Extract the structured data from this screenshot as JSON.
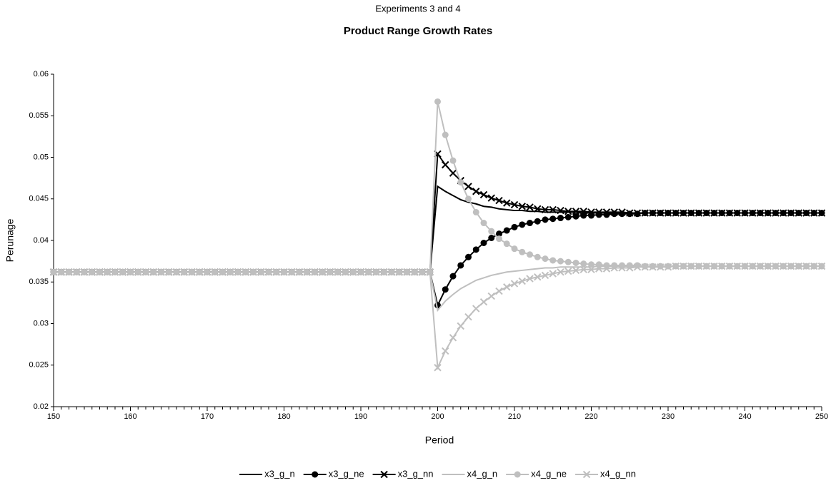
{
  "chart_data": {
    "type": "line",
    "title": "Experiments 3 and 4",
    "subtitle": "Product Range Growth Rates",
    "x_label": "Period",
    "y_label": "Perunage",
    "xlim": [
      150,
      250
    ],
    "xticks": [
      150,
      160,
      170,
      180,
      190,
      200,
      210,
      220,
      230,
      240,
      250
    ],
    "ylim": [
      0.02,
      0.06
    ],
    "yticks": [
      0.02,
      0.025,
      0.03,
      0.035,
      0.04,
      0.045,
      0.05,
      0.055,
      0.06
    ],
    "legend": "bottom",
    "x": [
      150,
      151,
      152,
      153,
      154,
      155,
      156,
      157,
      158,
      159,
      160,
      161,
      162,
      163,
      164,
      165,
      166,
      167,
      168,
      169,
      170,
      171,
      172,
      173,
      174,
      175,
      176,
      177,
      178,
      179,
      180,
      181,
      182,
      183,
      184,
      185,
      186,
      187,
      188,
      189,
      190,
      191,
      192,
      193,
      194,
      195,
      196,
      197,
      198,
      199,
      200,
      201,
      202,
      203,
      204,
      205,
      206,
      207,
      208,
      209,
      210,
      211,
      212,
      213,
      214,
      215,
      216,
      217,
      218,
      219,
      220,
      221,
      222,
      223,
      224,
      225,
      226,
      227,
      228,
      229,
      230,
      231,
      232,
      233,
      234,
      235,
      236,
      237,
      238,
      239,
      240,
      241,
      242,
      243,
      244,
      245,
      246,
      247,
      248,
      249,
      250
    ],
    "series": [
      {
        "name": "x3_g_n",
        "color": "#000000",
        "marker": "none",
        "values": [
          0.0362,
          0.0362,
          0.0362,
          0.0362,
          0.0362,
          0.0362,
          0.0362,
          0.0362,
          0.0362,
          0.0362,
          0.0362,
          0.0362,
          0.0362,
          0.0362,
          0.0362,
          0.0362,
          0.0362,
          0.0362,
          0.0362,
          0.0362,
          0.0362,
          0.0362,
          0.0362,
          0.0362,
          0.0362,
          0.0362,
          0.0362,
          0.0362,
          0.0362,
          0.0362,
          0.0362,
          0.0362,
          0.0362,
          0.0362,
          0.0362,
          0.0362,
          0.0362,
          0.0362,
          0.0362,
          0.0362,
          0.0362,
          0.0362,
          0.0362,
          0.0362,
          0.0362,
          0.0362,
          0.0362,
          0.0362,
          0.0362,
          0.0362,
          0.0465,
          0.0459,
          0.0454,
          0.0449,
          0.0446,
          0.0444,
          0.0441,
          0.044,
          0.0438,
          0.0437,
          0.0436,
          0.0436,
          0.0435,
          0.0435,
          0.0434,
          0.0434,
          0.0434,
          0.0434,
          0.0434,
          0.0433,
          0.0433,
          0.0433,
          0.0433,
          0.0433,
          0.0433,
          0.0433,
          0.0433,
          0.0433,
          0.0433,
          0.0433,
          0.0433,
          0.0433,
          0.0433,
          0.0433,
          0.0433,
          0.0433,
          0.0433,
          0.0433,
          0.0433,
          0.0433,
          0.0433,
          0.0433,
          0.0433,
          0.0433,
          0.0433,
          0.0433,
          0.0433,
          0.0433,
          0.0433,
          0.0433,
          0.0433
        ]
      },
      {
        "name": "x3_g_ne",
        "color": "#000000",
        "marker": "circle",
        "values": [
          0.0362,
          0.0362,
          0.0362,
          0.0362,
          0.0362,
          0.0362,
          0.0362,
          0.0362,
          0.0362,
          0.0362,
          0.0362,
          0.0362,
          0.0362,
          0.0362,
          0.0362,
          0.0362,
          0.0362,
          0.0362,
          0.0362,
          0.0362,
          0.0362,
          0.0362,
          0.0362,
          0.0362,
          0.0362,
          0.0362,
          0.0362,
          0.0362,
          0.0362,
          0.0362,
          0.0362,
          0.0362,
          0.0362,
          0.0362,
          0.0362,
          0.0362,
          0.0362,
          0.0362,
          0.0362,
          0.0362,
          0.0362,
          0.0362,
          0.0362,
          0.0362,
          0.0362,
          0.0362,
          0.0362,
          0.0362,
          0.0362,
          0.0362,
          0.0322,
          0.0341,
          0.0357,
          0.037,
          0.038,
          0.0389,
          0.0397,
          0.0403,
          0.0408,
          0.0412,
          0.0416,
          0.0419,
          0.0421,
          0.0423,
          0.0425,
          0.0426,
          0.0427,
          0.0428,
          0.0429,
          0.043,
          0.043,
          0.0431,
          0.0431,
          0.0432,
          0.0432,
          0.0432,
          0.0432,
          0.0433,
          0.0433,
          0.0433,
          0.0433,
          0.0433,
          0.0433,
          0.0433,
          0.0433,
          0.0433,
          0.0433,
          0.0433,
          0.0433,
          0.0433,
          0.0433,
          0.0433,
          0.0433,
          0.0433,
          0.0433,
          0.0433,
          0.0433,
          0.0433,
          0.0433,
          0.0433,
          0.0433
        ]
      },
      {
        "name": "x3_g_nn",
        "color": "#000000",
        "marker": "cross",
        "values": [
          0.0362,
          0.0362,
          0.0362,
          0.0362,
          0.0362,
          0.0362,
          0.0362,
          0.0362,
          0.0362,
          0.0362,
          0.0362,
          0.0362,
          0.0362,
          0.0362,
          0.0362,
          0.0362,
          0.0362,
          0.0362,
          0.0362,
          0.0362,
          0.0362,
          0.0362,
          0.0362,
          0.0362,
          0.0362,
          0.0362,
          0.0362,
          0.0362,
          0.0362,
          0.0362,
          0.0362,
          0.0362,
          0.0362,
          0.0362,
          0.0362,
          0.0362,
          0.0362,
          0.0362,
          0.0362,
          0.0362,
          0.0362,
          0.0362,
          0.0362,
          0.0362,
          0.0362,
          0.0362,
          0.0362,
          0.0362,
          0.0362,
          0.0362,
          0.0504,
          0.0491,
          0.0481,
          0.0472,
          0.0465,
          0.0459,
          0.0455,
          0.0451,
          0.0448,
          0.0445,
          0.0443,
          0.0441,
          0.044,
          0.0438,
          0.0437,
          0.0437,
          0.0436,
          0.0435,
          0.0435,
          0.0435,
          0.0434,
          0.0434,
          0.0434,
          0.0434,
          0.0434,
          0.0433,
          0.0433,
          0.0433,
          0.0433,
          0.0433,
          0.0433,
          0.0433,
          0.0433,
          0.0433,
          0.0433,
          0.0433,
          0.0433,
          0.0433,
          0.0433,
          0.0433,
          0.0433,
          0.0433,
          0.0433,
          0.0433,
          0.0433,
          0.0433,
          0.0433,
          0.0433,
          0.0433,
          0.0433,
          0.0433
        ]
      },
      {
        "name": "x4_g_n",
        "color": "#bfbfbf",
        "marker": "none",
        "values": [
          0.0362,
          0.0362,
          0.0362,
          0.0362,
          0.0362,
          0.0362,
          0.0362,
          0.0362,
          0.0362,
          0.0362,
          0.0362,
          0.0362,
          0.0362,
          0.0362,
          0.0362,
          0.0362,
          0.0362,
          0.0362,
          0.0362,
          0.0362,
          0.0362,
          0.0362,
          0.0362,
          0.0362,
          0.0362,
          0.0362,
          0.0362,
          0.0362,
          0.0362,
          0.0362,
          0.0362,
          0.0362,
          0.0362,
          0.0362,
          0.0362,
          0.0362,
          0.0362,
          0.0362,
          0.0362,
          0.0362,
          0.0362,
          0.0362,
          0.0362,
          0.0362,
          0.0362,
          0.0362,
          0.0362,
          0.0362,
          0.0362,
          0.0362,
          0.0316,
          0.0327,
          0.0335,
          0.0342,
          0.0347,
          0.0352,
          0.0355,
          0.0358,
          0.036,
          0.0362,
          0.0363,
          0.0364,
          0.0365,
          0.0366,
          0.0367,
          0.0367,
          0.0368,
          0.0368,
          0.0368,
          0.0368,
          0.0368,
          0.0369,
          0.0369,
          0.0369,
          0.0369,
          0.0369,
          0.0369,
          0.0369,
          0.0369,
          0.0369,
          0.0369,
          0.0369,
          0.0369,
          0.0369,
          0.0369,
          0.0369,
          0.0369,
          0.0369,
          0.0369,
          0.0369,
          0.0369,
          0.0369,
          0.0369,
          0.0369,
          0.0369,
          0.0369,
          0.0369,
          0.0369,
          0.0369,
          0.0369,
          0.0369
        ]
      },
      {
        "name": "x4_g_ne",
        "color": "#bfbfbf",
        "marker": "circle",
        "values": [
          0.0362,
          0.0362,
          0.0362,
          0.0362,
          0.0362,
          0.0362,
          0.0362,
          0.0362,
          0.0362,
          0.0362,
          0.0362,
          0.0362,
          0.0362,
          0.0362,
          0.0362,
          0.0362,
          0.0362,
          0.0362,
          0.0362,
          0.0362,
          0.0362,
          0.0362,
          0.0362,
          0.0362,
          0.0362,
          0.0362,
          0.0362,
          0.0362,
          0.0362,
          0.0362,
          0.0362,
          0.0362,
          0.0362,
          0.0362,
          0.0362,
          0.0362,
          0.0362,
          0.0362,
          0.0362,
          0.0362,
          0.0362,
          0.0362,
          0.0362,
          0.0362,
          0.0362,
          0.0362,
          0.0362,
          0.0362,
          0.0362,
          0.0362,
          0.0567,
          0.0527,
          0.0496,
          0.047,
          0.045,
          0.0434,
          0.0421,
          0.0411,
          0.0402,
          0.0396,
          0.039,
          0.0386,
          0.0383,
          0.038,
          0.0378,
          0.0376,
          0.0375,
          0.0374,
          0.0373,
          0.0372,
          0.0371,
          0.0371,
          0.037,
          0.037,
          0.037,
          0.037,
          0.037,
          0.0369,
          0.0369,
          0.0369,
          0.0369,
          0.0369,
          0.0369,
          0.0369,
          0.0369,
          0.0369,
          0.0369,
          0.0369,
          0.0369,
          0.0369,
          0.0369,
          0.0369,
          0.0369,
          0.0369,
          0.0369,
          0.0369,
          0.0369,
          0.0369,
          0.0369,
          0.0369,
          0.0369
        ]
      },
      {
        "name": "x4_g_nn",
        "color": "#bfbfbf",
        "marker": "cross",
        "values": [
          0.0362,
          0.0362,
          0.0362,
          0.0362,
          0.0362,
          0.0362,
          0.0362,
          0.0362,
          0.0362,
          0.0362,
          0.0362,
          0.0362,
          0.0362,
          0.0362,
          0.0362,
          0.0362,
          0.0362,
          0.0362,
          0.0362,
          0.0362,
          0.0362,
          0.0362,
          0.0362,
          0.0362,
          0.0362,
          0.0362,
          0.0362,
          0.0362,
          0.0362,
          0.0362,
          0.0362,
          0.0362,
          0.0362,
          0.0362,
          0.0362,
          0.0362,
          0.0362,
          0.0362,
          0.0362,
          0.0362,
          0.0362,
          0.0362,
          0.0362,
          0.0362,
          0.0362,
          0.0362,
          0.0362,
          0.0362,
          0.0362,
          0.0362,
          0.0247,
          0.0267,
          0.0283,
          0.0297,
          0.0308,
          0.0318,
          0.0326,
          0.0333,
          0.0339,
          0.0344,
          0.0348,
          0.0351,
          0.0354,
          0.0356,
          0.0358,
          0.036,
          0.0362,
          0.0363,
          0.0364,
          0.0365,
          0.0365,
          0.0366,
          0.0366,
          0.0367,
          0.0367,
          0.0367,
          0.0368,
          0.0368,
          0.0368,
          0.0368,
          0.0368,
          0.0369,
          0.0369,
          0.0369,
          0.0369,
          0.0369,
          0.0369,
          0.0369,
          0.0369,
          0.0369,
          0.0369,
          0.0369,
          0.0369,
          0.0369,
          0.0369,
          0.0369,
          0.0369,
          0.0369,
          0.0369,
          0.0369,
          0.0369
        ]
      }
    ]
  }
}
